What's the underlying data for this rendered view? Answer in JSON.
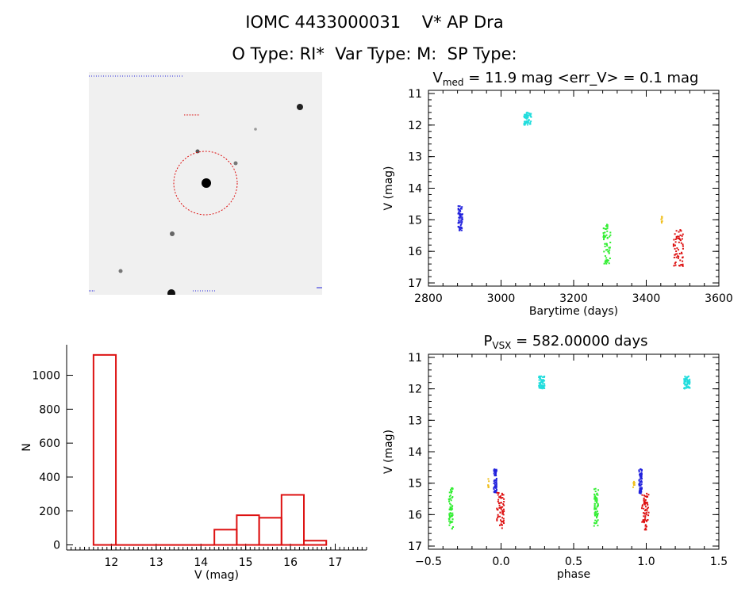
{
  "header": {
    "title_line1": "IOMC 4433000031    V* AP Dra",
    "title_line2": "O Type: RI*  Var Type: M:  SP Type:"
  },
  "colors": {
    "cyan": "#22dddd",
    "blue": "#2222dd",
    "green": "#33ee33",
    "orange": "#f0c020",
    "red": "#dd1111",
    "axis": "#000000",
    "histogram": "#dd1111"
  },
  "chart_data": [
    {
      "type": "scatter",
      "id": "lightcurve",
      "title_main": "V",
      "title_sub": "med",
      "title_rest": " = 11.9 mag <err_V> = 0.1 mag",
      "xlabel": "Barytime (days)",
      "ylabel": "V (mag)",
      "xlim": [
        2800,
        3600
      ],
      "ylim": [
        17.1,
        10.9
      ],
      "y_inverted": true,
      "xticks": [
        2800,
        3000,
        3200,
        3400,
        3600
      ],
      "yticks": [
        11,
        12,
        13,
        14,
        15,
        16,
        17
      ],
      "groups": [
        {
          "color": "cyan",
          "x": [
            3063,
            3083
          ],
          "y": [
            11.6,
            12.0
          ]
        },
        {
          "color": "blue",
          "x": [
            2882,
            2894
          ],
          "y": [
            14.55,
            15.35
          ]
        },
        {
          "color": "green",
          "x": [
            3282,
            3302
          ],
          "y": [
            15.15,
            16.45
          ]
        },
        {
          "color": "orange",
          "x": [
            3441,
            3445
          ],
          "y": [
            14.85,
            15.15
          ]
        },
        {
          "color": "red",
          "x": [
            3474,
            3502
          ],
          "y": [
            15.3,
            16.5
          ]
        }
      ]
    },
    {
      "type": "bar",
      "id": "histogram",
      "xlabel": "V (mag)",
      "ylabel": "N",
      "xlim": [
        11.0,
        17.7
      ],
      "ylim": [
        -30,
        1180
      ],
      "xticks": [
        12,
        13,
        14,
        15,
        16,
        17
      ],
      "yticks": [
        0,
        200,
        400,
        600,
        800,
        1000
      ],
      "bin_width": 0.5,
      "bin_centers": [
        11.85,
        14.55,
        15.05,
        15.55,
        16.05,
        16.55
      ],
      "counts": [
        1120,
        90,
        175,
        160,
        295,
        25
      ]
    },
    {
      "type": "scatter",
      "id": "phased",
      "title_main": "P",
      "title_sub": "VSX",
      "title_rest": " = 582.00000 days",
      "xlabel": "phase",
      "ylabel": "V (mag)",
      "xlim": [
        -0.5,
        1.5
      ],
      "ylim": [
        17.1,
        10.9
      ],
      "y_inverted": true,
      "xticks": [
        -0.5,
        0.0,
        0.5,
        1.0,
        1.5
      ],
      "xtick_labels": [
        "−0.5",
        "0.0",
        "0.5",
        "1.0",
        "1.5"
      ],
      "yticks": [
        11,
        12,
        13,
        14,
        15,
        16,
        17
      ],
      "groups": [
        {
          "color": "cyan",
          "x": [
            0.26,
            0.3
          ],
          "y": [
            11.6,
            12.0
          ]
        },
        {
          "color": "cyan",
          "x": [
            1.26,
            1.3
          ],
          "y": [
            11.6,
            12.0
          ]
        },
        {
          "color": "blue",
          "x": [
            -0.05,
            -0.03
          ],
          "y": [
            14.55,
            15.35
          ]
        },
        {
          "color": "blue",
          "x": [
            0.95,
            0.97
          ],
          "y": [
            14.55,
            15.35
          ]
        },
        {
          "color": "green",
          "x": [
            -0.36,
            -0.33
          ],
          "y": [
            15.15,
            16.45
          ]
        },
        {
          "color": "green",
          "x": [
            0.64,
            0.67
          ],
          "y": [
            15.15,
            16.45
          ]
        },
        {
          "color": "orange",
          "x": [
            -0.09,
            -0.08
          ],
          "y": [
            14.85,
            15.15
          ]
        },
        {
          "color": "orange",
          "x": [
            0.91,
            0.92
          ],
          "y": [
            14.85,
            15.15
          ]
        },
        {
          "color": "red",
          "x": [
            -0.03,
            0.02
          ],
          "y": [
            15.3,
            16.5
          ]
        },
        {
          "color": "red",
          "x": [
            0.97,
            1.02
          ],
          "y": [
            15.3,
            16.5
          ]
        }
      ]
    }
  ]
}
